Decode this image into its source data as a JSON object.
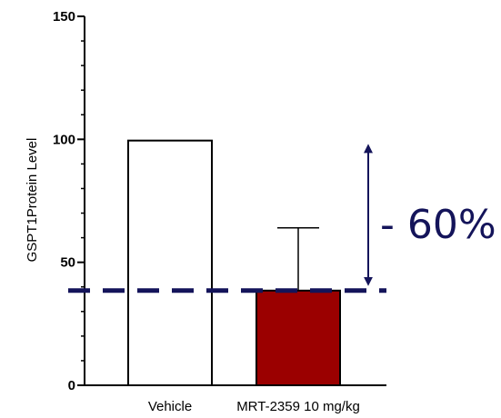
{
  "chart_data": {
    "type": "bar",
    "title": "",
    "xlabel": "",
    "ylabel": "GSPT1Protein Level",
    "ylim": [
      0,
      150
    ],
    "yticks": [
      0,
      50,
      100,
      150
    ],
    "categories": [
      "Vehicle",
      "MRT-2359 10 mg/kg"
    ],
    "values": [
      99.5,
      38.5
    ],
    "error_upper": [
      0,
      64
    ],
    "bar_colors": [
      "#ffffff",
      "#9b0000"
    ],
    "reference_line": {
      "value": 38.5,
      "color": "#14145a",
      "style": "dashed"
    },
    "annotation": {
      "text": "- 60%",
      "from": 100,
      "to": 38.5,
      "color": "#14145a"
    },
    "grid": false,
    "legend": "none"
  }
}
